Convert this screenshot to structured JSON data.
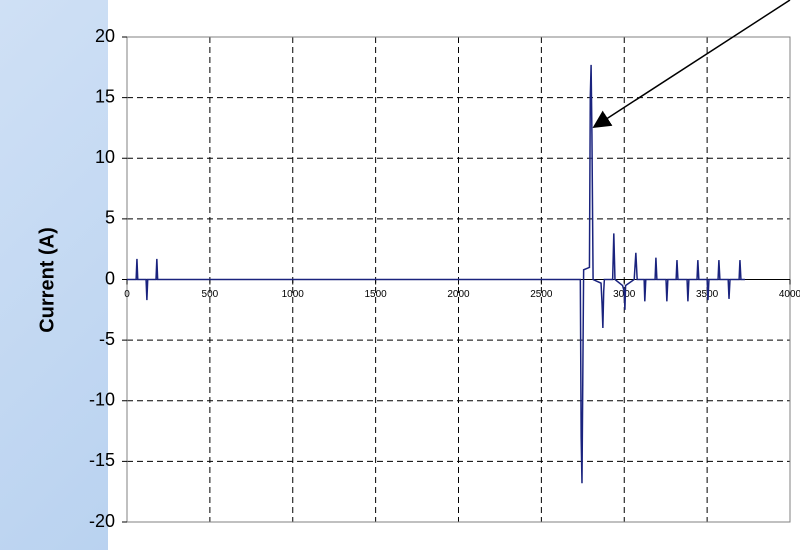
{
  "chart_data": {
    "type": "line",
    "y_label": "Current (A)",
    "x": [
      0,
      55,
      60,
      65,
      115,
      120,
      125,
      175,
      180,
      185,
      2720,
      2735,
      2740,
      2745,
      2750,
      2755,
      2790,
      2795,
      2800,
      2805,
      2812,
      2860,
      2866,
      2871,
      2876,
      2880,
      2930,
      2937,
      2944,
      2990,
      3000,
      3004,
      3008,
      3060,
      3070,
      3078,
      3120,
      3124,
      3130,
      3186,
      3191,
      3197,
      3252,
      3257,
      3263,
      3313,
      3318,
      3324,
      3379,
      3384,
      3390,
      3439,
      3444,
      3450,
      3500,
      3505,
      3511,
      3566,
      3571,
      3577,
      3627,
      3632,
      3638,
      3693,
      3698,
      3704,
      3728
    ],
    "series": [
      {
        "name": "Current",
        "color": "#1a237e",
        "values": [
          0,
          0,
          1.7,
          0,
          0,
          -1.7,
          0,
          0,
          1.7,
          0,
          0,
          0,
          -13,
          -16.8,
          -8,
          0.8,
          1,
          15,
          17.7,
          12,
          0,
          -0.3,
          -2,
          -4,
          -1,
          0,
          0,
          3.8,
          0,
          -0.5,
          -1,
          -2.5,
          -0.5,
          0,
          2.2,
          0,
          0,
          -1.8,
          0,
          0,
          1.8,
          0,
          0,
          -1.8,
          0,
          0,
          1.6,
          0,
          0,
          -1.8,
          0,
          0,
          1.6,
          0,
          0,
          -1.7,
          0,
          0,
          1.6,
          0,
          0,
          -1.6,
          0,
          0,
          1.6,
          0,
          0
        ]
      }
    ],
    "xlim": [
      0,
      4000
    ],
    "xticks": [
      0,
      500,
      1000,
      1500,
      2000,
      2500,
      3000,
      3500,
      4000
    ],
    "ylim": [
      -20,
      20
    ],
    "yticks": [
      -20,
      -15,
      -10,
      -5,
      0,
      5,
      10,
      15,
      20
    ],
    "grid": true
  }
}
